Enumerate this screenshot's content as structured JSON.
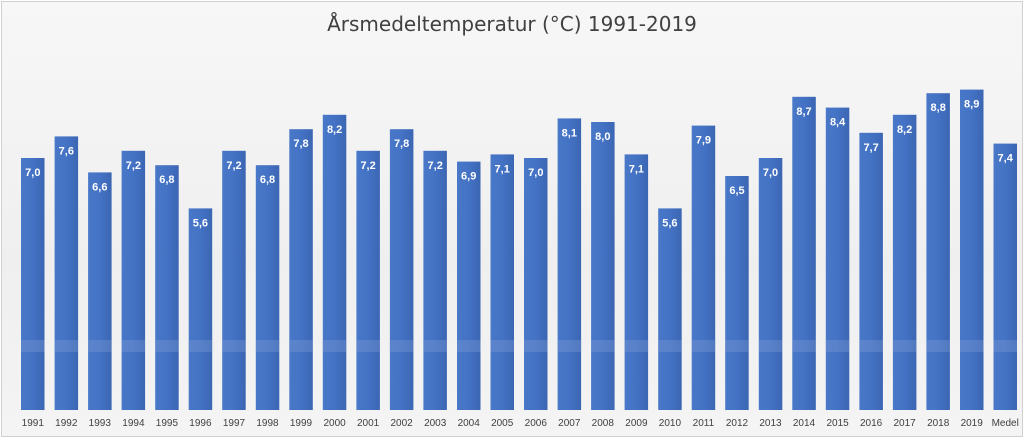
{
  "chart_data": {
    "type": "bar",
    "title": "Årsmedeltemperatur (°C) 1991-2019",
    "xlabel": "",
    "ylabel": "",
    "ylim": [
      0,
      9.5
    ],
    "grid": false,
    "legend": "none",
    "bar_color": "#4472c4",
    "categories": [
      "1991",
      "1992",
      "1993",
      "1994",
      "1995",
      "1996",
      "1997",
      "1998",
      "1999",
      "2000",
      "2001",
      "2002",
      "2003",
      "2004",
      "2005",
      "2006",
      "2007",
      "2008",
      "2009",
      "2010",
      "2011",
      "2012",
      "2013",
      "2014",
      "2015",
      "2016",
      "2017",
      "2018",
      "2019",
      "Medel"
    ],
    "values": [
      7.0,
      7.6,
      6.6,
      7.2,
      6.8,
      5.6,
      7.2,
      6.8,
      7.8,
      8.2,
      7.2,
      7.8,
      7.2,
      6.9,
      7.1,
      7.0,
      8.1,
      8.0,
      7.1,
      5.6,
      7.9,
      6.5,
      7.0,
      8.7,
      8.4,
      7.7,
      8.2,
      8.8,
      8.9,
      7.4
    ],
    "value_labels": [
      "7,0",
      "7,6",
      "6,6",
      "7,2",
      "6,8",
      "5,6",
      "7,2",
      "6,8",
      "7,8",
      "8,2",
      "7,2",
      "7,8",
      "7,2",
      "6,9",
      "7,1",
      "7,0",
      "8,1",
      "8,0",
      "7,1",
      "5,6",
      "7,9",
      "6,5",
      "7,0",
      "8,7",
      "8,4",
      "7,7",
      "8,2",
      "8,8",
      "8,9",
      "7,4"
    ]
  }
}
